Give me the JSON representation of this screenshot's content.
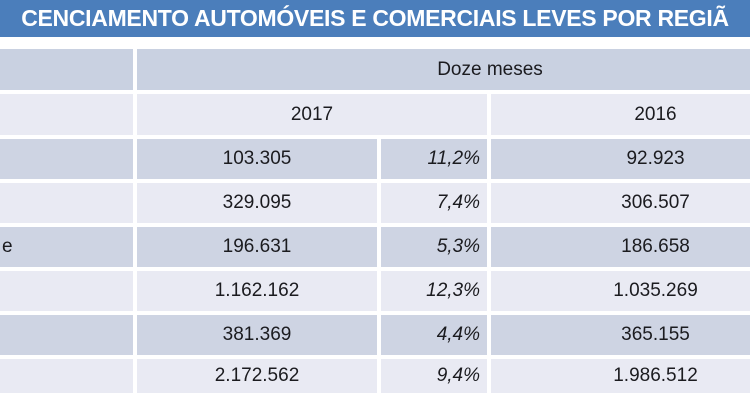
{
  "slide": {
    "title_visible": "CENCIAMENTO AUTOMÓVEIS E COMERCIAIS LEVES POR REGIÃ"
  },
  "table": {
    "group_header": "Doze meses",
    "col_2017": "2017",
    "col_2016": "2016",
    "rows": [
      {
        "region_fragment": "",
        "value_2017": "103.305",
        "variation": "11,2%",
        "value_2016": "92.923"
      },
      {
        "region_fragment": "",
        "value_2017": "329.095",
        "variation": "7,4%",
        "value_2016": "306.507"
      },
      {
        "region_fragment": "e",
        "value_2017": "196.631",
        "variation": "5,3%",
        "value_2016": "186.658"
      },
      {
        "region_fragment": "",
        "value_2017": "1.162.162",
        "variation": "12,3%",
        "value_2016": "1.035.269"
      },
      {
        "region_fragment": "",
        "value_2017": "381.369",
        "variation": "4,4%",
        "value_2016": "365.155"
      },
      {
        "region_fragment": "",
        "value_2017": "2.172.562",
        "variation": "9,4%",
        "value_2016": "1.986.512"
      }
    ]
  },
  "colors": {
    "title_bar": "#4b7ebb",
    "title_text": "#ffffff",
    "header_band": "#c9d1e1",
    "band_dark": "#ced4e3",
    "band_light": "#e9eaf3",
    "text": "#1b1b1f",
    "gutter": "#ffffff"
  },
  "chart_data": {
    "type": "table",
    "title": "CENCIAMENTO AUTOMÓVEIS E COMERCIAIS LEVES POR REGIÃ",
    "group_header": "Doze meses",
    "column_headers": [
      "2017",
      "2016"
    ],
    "columns_meaning": [
      "value 2017",
      "percent change (italic, unlabeled)",
      "value 2016"
    ],
    "rows": [
      {
        "region_visible": "",
        "v2017": 103305,
        "pct": "11,2%",
        "v2016": 92923
      },
      {
        "region_visible": "",
        "v2017": 329095,
        "pct": "7,4%",
        "v2016": 306507
      },
      {
        "region_visible": "e",
        "v2017": 196631,
        "pct": "5,3%",
        "v2016": 186658
      },
      {
        "region_visible": "",
        "v2017": 1162162,
        "pct": "12,3%",
        "v2016": 1035269
      },
      {
        "region_visible": "",
        "v2017": 381369,
        "pct": "4,4%",
        "v2016": 365155
      },
      {
        "region_visible": "",
        "v2017": 2172562,
        "pct": "9,4%",
        "v2016": 1986512
      }
    ],
    "layout_hints": {
      "banded_rows": true,
      "table_cropped": "left region-name column, title edges, and right side of table are cut off by the screenshot",
      "last_row_is_total": true
    }
  }
}
